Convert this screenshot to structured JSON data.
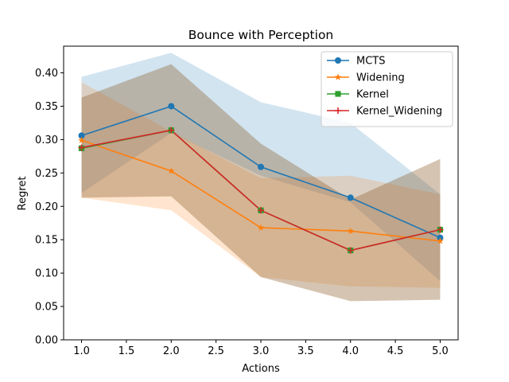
{
  "chart_data": {
    "type": "line",
    "title": "Bounce with Perception",
    "xlabel": "Actions",
    "ylabel": "Regret",
    "xlim": [
      0.8,
      5.2
    ],
    "ylim": [
      0.0,
      0.44
    ],
    "xticks": [
      1.0,
      1.5,
      2.0,
      2.5,
      3.0,
      3.5,
      4.0,
      4.5,
      5.0
    ],
    "yticks": [
      0.0,
      0.05,
      0.1,
      0.15,
      0.2,
      0.25,
      0.3,
      0.35,
      0.4
    ],
    "xtick_labels": [
      "1.0",
      "1.5",
      "2.0",
      "2.5",
      "3.0",
      "3.5",
      "4.0",
      "4.5",
      "5.0"
    ],
    "ytick_labels": [
      "0.00",
      "0.05",
      "0.10",
      "0.15",
      "0.20",
      "0.25",
      "0.30",
      "0.35",
      "0.40"
    ],
    "grid": false,
    "legend_position": "top-right",
    "x": [
      1,
      2,
      3,
      4,
      5
    ],
    "series": [
      {
        "name": "MCTS",
        "color": "#1f77b4",
        "marker": "circle",
        "values": [
          0.306,
          0.35,
          0.259,
          0.213,
          0.153
        ],
        "lower": [
          0.22,
          0.31,
          0.246,
          0.206,
          0.088
        ],
        "upper": [
          0.394,
          0.43,
          0.356,
          0.325,
          0.218
        ]
      },
      {
        "name": "Widening",
        "color": "#ff7f0e",
        "marker": "star",
        "values": [
          0.299,
          0.253,
          0.168,
          0.163,
          0.148
        ],
        "lower": [
          0.213,
          0.194,
          0.094,
          0.08,
          0.078
        ],
        "upper": [
          0.386,
          0.312,
          0.242,
          0.246,
          0.218
        ]
      },
      {
        "name": "Kernel",
        "color": "#2ca02c",
        "marker": "square",
        "values": [
          0.287,
          0.314,
          0.194,
          0.134,
          0.165
        ],
        "lower": [
          0.213,
          0.215,
          0.094,
          0.058,
          0.06
        ],
        "upper": [
          0.363,
          0.413,
          0.294,
          0.21,
          0.271
        ]
      },
      {
        "name": "Kernel_Widening",
        "color": "#d62728",
        "marker": "plus",
        "values": [
          0.288,
          0.314,
          0.194,
          0.134,
          0.165
        ],
        "lower": [
          0.213,
          0.215,
          0.094,
          0.058,
          0.06
        ],
        "upper": [
          0.363,
          0.413,
          0.294,
          0.21,
          0.271
        ]
      }
    ]
  }
}
